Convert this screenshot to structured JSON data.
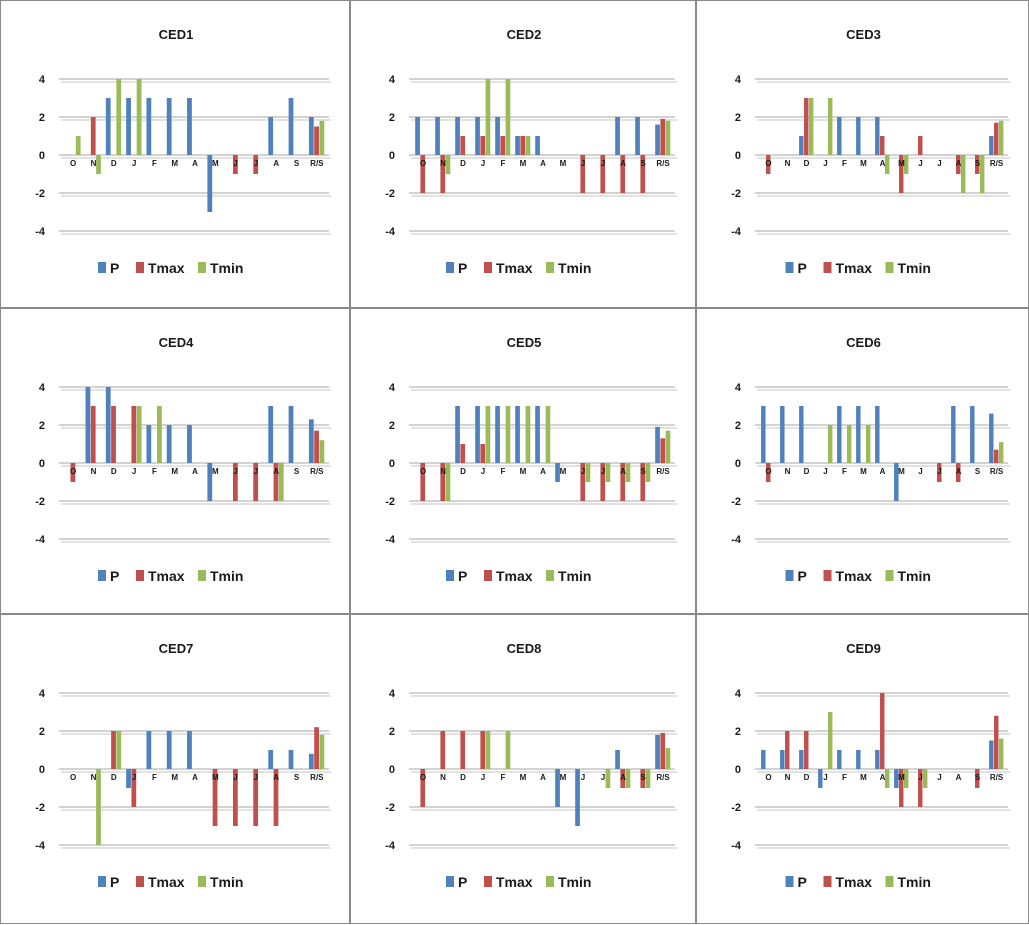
{
  "colors": {
    "P": "#4f81bd",
    "Tmax": "#c0504d",
    "Tmin": "#9bbb59"
  },
  "chart_data": [
    {
      "type": "bar",
      "title": "CED1",
      "categories": [
        "O",
        "N",
        "D",
        "J",
        "F",
        "M",
        "A",
        "M",
        "J",
        "J",
        "A",
        "S",
        "R/S"
      ],
      "ylim": [
        -4,
        4
      ],
      "yticks": [
        4,
        2,
        0,
        -2,
        -4
      ],
      "legend": "bottom",
      "series": [
        {
          "name": "P",
          "values": [
            0,
            0,
            3,
            3,
            3,
            3,
            3,
            -3,
            0,
            0,
            2,
            3,
            2
          ]
        },
        {
          "name": "Tmax",
          "values": [
            0,
            2,
            0,
            0,
            0,
            0,
            0,
            0,
            -1,
            -1,
            0,
            0,
            1.5
          ]
        },
        {
          "name": "Tmin",
          "values": [
            1,
            -1,
            4,
            4,
            0,
            0,
            0,
            0,
            0,
            0,
            0,
            0,
            1.8
          ]
        }
      ]
    },
    {
      "type": "bar",
      "title": "CED2",
      "categories": [
        "O",
        "N",
        "D",
        "J",
        "F",
        "M",
        "A",
        "M",
        "J",
        "J",
        "A",
        "S",
        "R/S"
      ],
      "ylim": [
        -4,
        4
      ],
      "yticks": [
        4,
        2,
        0,
        -2,
        -4
      ],
      "legend": "bottom",
      "series": [
        {
          "name": "P",
          "values": [
            2,
            2,
            2,
            2,
            2,
            1,
            1,
            0,
            0,
            0,
            2,
            2,
            1.6
          ]
        },
        {
          "name": "Tmax",
          "values": [
            -2,
            -2,
            1,
            1,
            1,
            1,
            0,
            0,
            -2,
            -2,
            -2,
            -2,
            1.9
          ]
        },
        {
          "name": "Tmin",
          "values": [
            0,
            -1,
            0,
            4,
            4,
            1,
            0,
            0,
            0,
            0,
            0,
            0,
            1.8
          ]
        }
      ]
    },
    {
      "type": "bar",
      "title": "CED3",
      "categories": [
        "O",
        "N",
        "D",
        "J",
        "F",
        "M",
        "A",
        "M",
        "J",
        "J",
        "A",
        "S",
        "R/S"
      ],
      "ylim": [
        -4,
        4
      ],
      "yticks": [
        4,
        2,
        0,
        -2,
        -4
      ],
      "legend": "bottom",
      "series": [
        {
          "name": "P",
          "values": [
            0,
            0,
            1,
            0,
            2,
            2,
            2,
            0,
            0,
            0,
            0,
            0,
            1
          ]
        },
        {
          "name": "Tmax",
          "values": [
            -1,
            0,
            3,
            0,
            0,
            0,
            1,
            -2,
            1,
            0,
            -1,
            -1,
            1.7
          ]
        },
        {
          "name": "Tmin",
          "values": [
            0,
            0,
            3,
            3,
            0,
            0,
            -1,
            -1,
            0,
            0,
            -2,
            -2,
            1.8
          ]
        }
      ]
    },
    {
      "type": "bar",
      "title": "CED4",
      "categories": [
        "O",
        "N",
        "D",
        "J",
        "F",
        "M",
        "A",
        "M",
        "J",
        "J",
        "A",
        "S",
        "R/S"
      ],
      "ylim": [
        -4,
        4
      ],
      "yticks": [
        4,
        2,
        0,
        -2,
        -4
      ],
      "legend": "bottom",
      "series": [
        {
          "name": "P",
          "values": [
            0,
            4,
            4,
            0,
            2,
            2,
            2,
            -2,
            0,
            0,
            3,
            3,
            2.3
          ]
        },
        {
          "name": "Tmax",
          "values": [
            -1,
            3,
            3,
            3,
            0,
            0,
            0,
            0,
            -2,
            -2,
            -2,
            0,
            1.7
          ]
        },
        {
          "name": "Tmin",
          "values": [
            0,
            0,
            0,
            3,
            3,
            0,
            0,
            0,
            0,
            0,
            -2,
            0,
            1.2
          ]
        }
      ]
    },
    {
      "type": "bar",
      "title": "CED5",
      "categories": [
        "O",
        "N",
        "D",
        "J",
        "F",
        "M",
        "A",
        "M",
        "J",
        "J",
        "A",
        "S",
        "R/S"
      ],
      "ylim": [
        -4,
        4
      ],
      "yticks": [
        4,
        2,
        0,
        -2,
        -4
      ],
      "legend": "bottom",
      "series": [
        {
          "name": "P",
          "values": [
            0,
            0,
            3,
            3,
            3,
            3,
            3,
            -1,
            0,
            0,
            0,
            0,
            1.9
          ]
        },
        {
          "name": "Tmax",
          "values": [
            -2,
            -2,
            1,
            1,
            0,
            0,
            0,
            0,
            -2,
            -2,
            -2,
            -2,
            1.3
          ]
        },
        {
          "name": "Tmin",
          "values": [
            0,
            -2,
            0,
            3,
            3,
            3,
            3,
            0,
            -1,
            -1,
            -1,
            -1,
            1.7
          ]
        }
      ]
    },
    {
      "type": "bar",
      "title": "CED6",
      "categories": [
        "O",
        "N",
        "D",
        "J",
        "F",
        "M",
        "A",
        "M",
        "J",
        "J",
        "A",
        "S",
        "R/S"
      ],
      "ylim": [
        -4,
        4
      ],
      "yticks": [
        4,
        2,
        0,
        -2,
        -4
      ],
      "legend": "bottom",
      "series": [
        {
          "name": "P",
          "values": [
            3,
            3,
            3,
            0,
            3,
            3,
            3,
            -2,
            0,
            0,
            3,
            3,
            2.6
          ]
        },
        {
          "name": "Tmax",
          "values": [
            -1,
            0,
            0,
            0,
            0,
            0,
            0,
            0,
            0,
            -1,
            -1,
            0,
            0.7
          ]
        },
        {
          "name": "Tmin",
          "values": [
            0,
            0,
            0,
            2,
            2,
            2,
            0,
            0,
            0,
            0,
            0,
            0,
            1.1
          ]
        }
      ]
    },
    {
      "type": "bar",
      "title": "CED7",
      "categories": [
        "O",
        "N",
        "D",
        "J",
        "F",
        "M",
        "A",
        "M",
        "J",
        "J",
        "A",
        "S",
        "R/S"
      ],
      "ylim": [
        -4,
        4
      ],
      "yticks": [
        4,
        2,
        0,
        -2,
        -4
      ],
      "legend": "bottom",
      "series": [
        {
          "name": "P",
          "values": [
            0,
            0,
            0,
            -1,
            2,
            2,
            2,
            0,
            0,
            0,
            1,
            1,
            0.8
          ]
        },
        {
          "name": "Tmax",
          "values": [
            0,
            0,
            2,
            -2,
            0,
            0,
            0,
            -3,
            -3,
            -3,
            -3,
            0,
            2.2
          ]
        },
        {
          "name": "Tmin",
          "values": [
            0,
            -4,
            2,
            0,
            0,
            0,
            0,
            0,
            0,
            0,
            0,
            0,
            1.8
          ]
        }
      ]
    },
    {
      "type": "bar",
      "title": "CED8",
      "categories": [
        "O",
        "N",
        "D",
        "J",
        "F",
        "M",
        "A",
        "M",
        "J",
        "J",
        "A",
        "S",
        "R/S"
      ],
      "ylim": [
        -4,
        4
      ],
      "yticks": [
        4,
        2,
        0,
        -2,
        -4
      ],
      "legend": "bottom",
      "series": [
        {
          "name": "P",
          "values": [
            0,
            0,
            0,
            0,
            0,
            0,
            0,
            -2,
            -3,
            0,
            1,
            0,
            1.8
          ]
        },
        {
          "name": "Tmax",
          "values": [
            -2,
            2,
            2,
            2,
            0,
            0,
            0,
            0,
            0,
            0,
            -1,
            -1,
            1.9
          ]
        },
        {
          "name": "Tmin",
          "values": [
            0,
            0,
            0,
            2,
            2,
            0,
            0,
            0,
            0,
            -1,
            -1,
            -1,
            1.1
          ]
        }
      ]
    },
    {
      "type": "bar",
      "title": "CED9",
      "categories": [
        "O",
        "N",
        "D",
        "J",
        "F",
        "M",
        "A",
        "M",
        "J",
        "J",
        "A",
        "S",
        "R/S"
      ],
      "ylim": [
        -4,
        4
      ],
      "yticks": [
        4,
        2,
        0,
        -2,
        -4
      ],
      "legend": "bottom",
      "series": [
        {
          "name": "P",
          "values": [
            1,
            1,
            1,
            -1,
            1,
            1,
            1,
            -1,
            0,
            0,
            0,
            0,
            1.5
          ]
        },
        {
          "name": "Tmax",
          "values": [
            0,
            2,
            2,
            0,
            0,
            0,
            4,
            -2,
            -2,
            0,
            0,
            -1,
            2.8
          ]
        },
        {
          "name": "Tmin",
          "values": [
            0,
            0,
            0,
            3,
            0,
            0,
            -1,
            -1,
            -1,
            0,
            0,
            0,
            1.6
          ]
        }
      ]
    }
  ]
}
